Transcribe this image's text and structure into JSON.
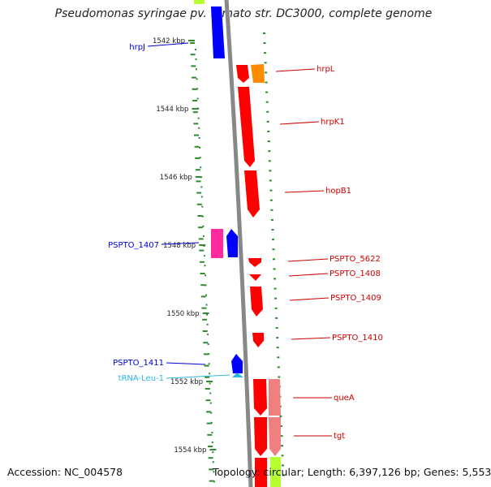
{
  "title": "Pseudomonas syringae pv. tomato str. DC3000, complete genome",
  "accession": "Accession: NC_004578",
  "topology": "Topology: circular; Length: 6,397,126 bp; Genes: 5,553",
  "ticks": [
    {
      "label": "1542 kbp",
      "kb": 1542
    },
    {
      "label": "1544 kbp",
      "kb": 1544
    },
    {
      "label": "1546 kbp",
      "kb": 1546
    },
    {
      "label": "1548 kbp",
      "kb": 1548
    },
    {
      "label": "1550 kbp",
      "kb": 1550
    },
    {
      "label": "1552 kbp",
      "kb": 1552
    },
    {
      "label": "1554 kbp",
      "kb": 1554
    }
  ],
  "colors": {
    "forward_cds": "#ff0000",
    "reverse_cds": "#0000ff",
    "orange_feature": "#ff8c00",
    "pink_feature": "#ff2aa0",
    "light_red_feature": "#f08080",
    "trna": "#29b6e6",
    "backbone": "#888888",
    "green_ticks": "#2e8b2e",
    "lime_band": "#b5ff2f",
    "forward_label": "#cc0000",
    "reverse_label": "#0000cc",
    "trna_label": "#29b6e6"
  },
  "genes": [
    {
      "name": "hrpJ",
      "strand": "-",
      "label_side": "left"
    },
    {
      "name": "hrpL",
      "strand": "+",
      "label_side": "right"
    },
    {
      "name": "hrpK1",
      "strand": "+",
      "label_side": "right"
    },
    {
      "name": "hopB1",
      "strand": "+",
      "label_side": "right"
    },
    {
      "name": "PSPTO_1407",
      "strand": "-",
      "label_side": "left"
    },
    {
      "name": "PSPTO_5622",
      "strand": "+",
      "label_side": "right"
    },
    {
      "name": "PSPTO_1408",
      "strand": "+",
      "label_side": "right"
    },
    {
      "name": "PSPTO_1409",
      "strand": "+",
      "label_side": "right"
    },
    {
      "name": "PSPTO_1410",
      "strand": "+",
      "label_side": "right"
    },
    {
      "name": "PSPTO_1411",
      "strand": "-",
      "label_side": "left"
    },
    {
      "name": "tRNA-Leu-1",
      "strand": "-",
      "label_side": "left"
    },
    {
      "name": "queA",
      "strand": "+",
      "label_side": "right"
    },
    {
      "name": "tgt",
      "strand": "+",
      "label_side": "right"
    }
  ]
}
